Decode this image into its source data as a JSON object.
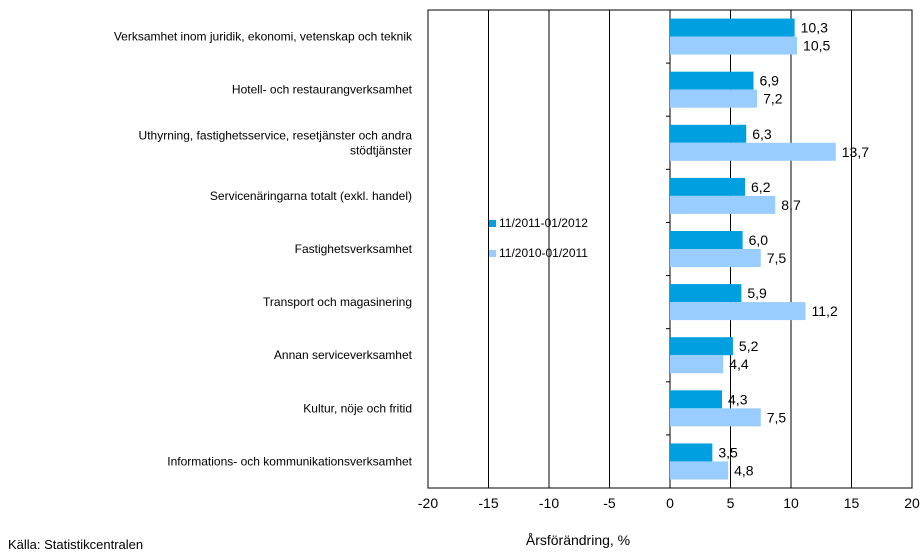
{
  "chart_data": {
    "type": "bar",
    "orientation": "horizontal",
    "categories": [
      [
        "Verksamhet inom juridik, ekonomi, vetenskap och teknik"
      ],
      [
        "Hotell- och restaurangverksamhet"
      ],
      [
        "Uthyrning, fastighetsservice, resetjänster och andra",
        "stödtjänster"
      ],
      [
        "Servicenäringarna totalt (exkl. handel)"
      ],
      [
        "Fastighetsverksamhet"
      ],
      [
        "Transport och magasinering"
      ],
      [
        "Annan serviceverksamhet"
      ],
      [
        "Kultur, nöje och fritid"
      ],
      [
        "Informations- och kommunikationsverksamhet"
      ]
    ],
    "series": [
      {
        "name": "11/2011-01/2012",
        "color": "#00a0e0",
        "values": [
          10.3,
          6.9,
          6.3,
          6.2,
          6.0,
          5.9,
          5.2,
          4.3,
          3.5
        ],
        "labels": [
          "10,3",
          "6,9",
          "6,3",
          "6,2",
          "6,0",
          "5,9",
          "5,2",
          "4,3",
          "3,5"
        ]
      },
      {
        "name": "11/2010-01/2011",
        "color": "#99ccff",
        "values": [
          10.5,
          7.2,
          13.7,
          8.7,
          7.5,
          11.2,
          4.4,
          7.5,
          4.8
        ],
        "labels": [
          "10,5",
          "7,2",
          "13,7",
          "8,7",
          "7,5",
          "11,2",
          "4,4",
          "7,5",
          "4,8"
        ]
      }
    ],
    "xlim": [
      -20,
      20
    ],
    "xticks": [
      -20,
      -15,
      -10,
      -5,
      0,
      5,
      10,
      15,
      20
    ],
    "xtick_labels": [
      "-20",
      "-15",
      "-10",
      "-5",
      "0",
      "5",
      "10",
      "15",
      "20"
    ],
    "xlabel": "Årsförändring, %",
    "grid": "vertical",
    "legend_position": "center-left"
  },
  "source": "Källa: Statistikcentralen"
}
